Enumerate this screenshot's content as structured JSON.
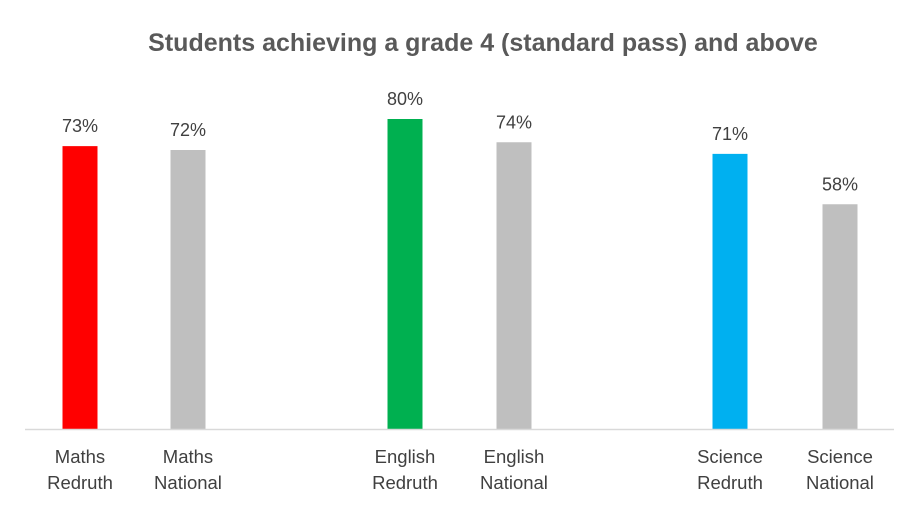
{
  "chart_data": {
    "type": "bar",
    "title": "Students achieving a grade 4 (standard pass) and above",
    "xlabel": "",
    "ylabel": "",
    "ylim": [
      0,
      80
    ],
    "grid": false,
    "legend": "none",
    "bars": [
      {
        "label_line1": "Maths",
        "label_line2": "Redruth",
        "value": 73,
        "value_label": "73%",
        "color": "#ff0000"
      },
      {
        "label_line1": "Maths",
        "label_line2": "National",
        "value": 72,
        "value_label": "72%",
        "color": "#bfbfbf"
      },
      {
        "label_line1": "English",
        "label_line2": "Redruth",
        "value": 80,
        "value_label": "80%",
        "color": "#00b050"
      },
      {
        "label_line1": "English",
        "label_line2": "National",
        "value": 74,
        "value_label": "74%",
        "color": "#bfbfbf"
      },
      {
        "label_line1": "Science",
        "label_line2": "Redruth",
        "value": 71,
        "value_label": "71%",
        "color": "#00b0f0"
      },
      {
        "label_line1": "Science",
        "label_line2": "National",
        "value": 58,
        "value_label": "58%",
        "color": "#bfbfbf"
      }
    ]
  }
}
